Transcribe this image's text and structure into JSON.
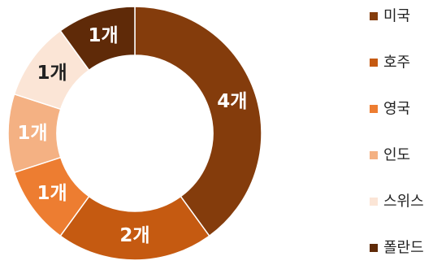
{
  "chart_data": {
    "type": "pie",
    "variant": "donut",
    "categories": [
      "미국",
      "호주",
      "영국",
      "인도",
      "스위스",
      "폴란드"
    ],
    "values": [
      4,
      2,
      1,
      1,
      1,
      1
    ],
    "data_labels": [
      "4개",
      "2개",
      "1개",
      "1개",
      "1개",
      "1개"
    ],
    "colors": [
      "#843c0c",
      "#c55a11",
      "#ed7d31",
      "#f4b183",
      "#fbe5d6",
      "#5f2a08"
    ],
    "label_colors": [
      "#ffffff",
      "#ffffff",
      "#ffffff",
      "#ffffff",
      "#222222",
      "#ffffff"
    ],
    "legend_position": "right",
    "start": "top",
    "direction": "clockwise"
  }
}
